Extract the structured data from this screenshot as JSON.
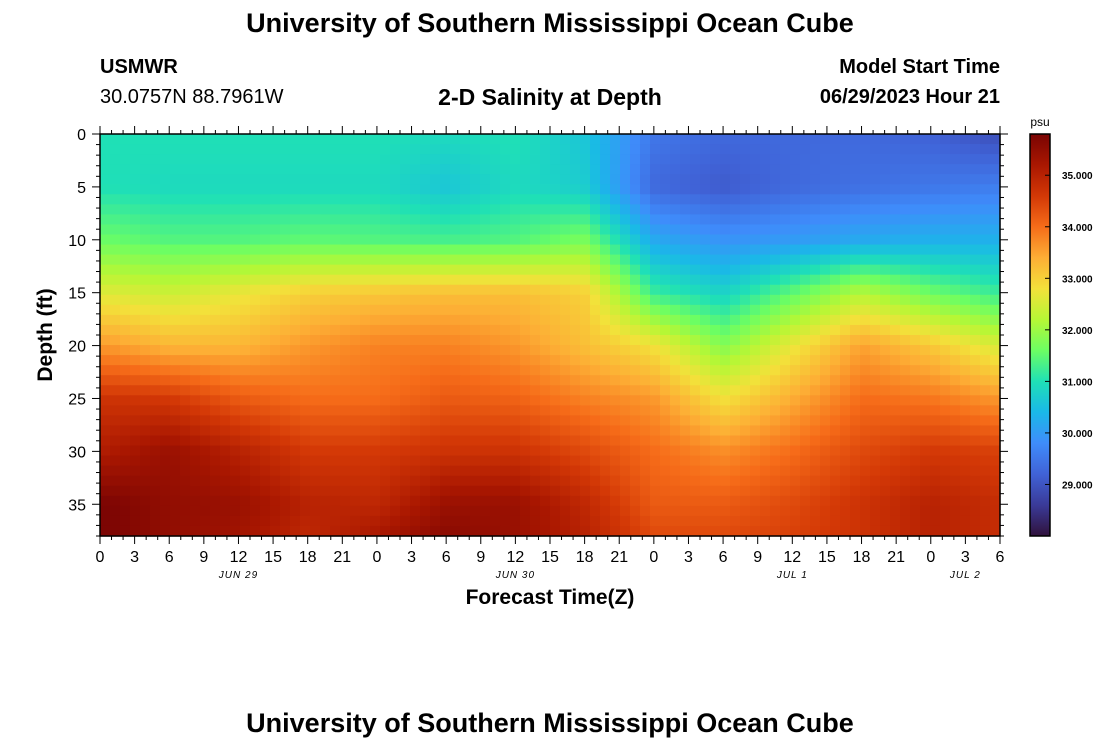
{
  "page": {
    "title": "University of Southern Mississippi Ocean Cube",
    "footer_title": "University of Southern Mississippi Ocean Cube",
    "station_id": "USMWR",
    "station_coords": "30.0757N  88.7961W",
    "plot_title": "2-D Salinity at Depth",
    "model_start_label": "Model Start Time",
    "model_start_value": "06/29/2023 Hour 21"
  },
  "chart_data": {
    "type": "heatmap",
    "title": "2-D Salinity at Depth",
    "xlabel": "Forecast Time(Z)",
    "ylabel": "Depth (ft)",
    "x_unit": "hours from 2023-06-29 00Z",
    "xlim": [
      0,
      78
    ],
    "ylim": [
      0,
      38
    ],
    "y_inverted": true,
    "x_ticks": [
      0,
      3,
      6,
      9,
      12,
      15,
      18,
      21,
      24,
      27,
      30,
      33,
      36,
      39,
      42,
      45,
      48,
      51,
      54,
      57,
      60,
      63,
      66,
      69,
      72,
      75,
      78
    ],
    "x_tick_labels": [
      "0",
      "3",
      "6",
      "9",
      "12",
      "15",
      "18",
      "21",
      "0",
      "3",
      "6",
      "9",
      "12",
      "15",
      "18",
      "21",
      "0",
      "3",
      "6",
      "9",
      "12",
      "15",
      "18",
      "21",
      "0",
      "3",
      "6"
    ],
    "date_labels": [
      {
        "x": 12,
        "text": "JUN 29"
      },
      {
        "x": 36,
        "text": "JUN 30"
      },
      {
        "x": 60,
        "text": "JUL 1"
      },
      {
        "x": 75,
        "text": "JUL 2"
      }
    ],
    "y_ticks": [
      0,
      5,
      10,
      15,
      20,
      25,
      30,
      35
    ],
    "colorbar": {
      "unit": "psu",
      "range": [
        28.0,
        35.8
      ],
      "tick_values": [
        29,
        30,
        31,
        32,
        33,
        34,
        35
      ],
      "tick_labels": [
        "29.000",
        "30.000",
        "31.000",
        "32.000",
        "33.000",
        "34.000",
        "35.000"
      ],
      "colors": [
        "#30123b",
        "#3a3a98",
        "#4062d6",
        "#3f8cfb",
        "#1ab8e8",
        "#1fe0b6",
        "#6cfe63",
        "#b6f735",
        "#f3e13a",
        "#fdae35",
        "#f66c19",
        "#d33806",
        "#a91701",
        "#7a0403"
      ]
    },
    "depths_ft": [
      0,
      5,
      10,
      15,
      20,
      25,
      30,
      35,
      38
    ],
    "times_h": [
      0,
      6,
      12,
      18,
      24,
      30,
      36,
      42,
      48,
      54,
      60,
      66,
      72,
      78
    ],
    "salinity_psu": [
      [
        31.0,
        31.0,
        31.0,
        31.0,
        31.0,
        30.9,
        31.0,
        30.6,
        29.5,
        29.3,
        29.3,
        29.3,
        29.2,
        28.9
      ],
      [
        31.0,
        30.9,
        30.9,
        30.9,
        30.9,
        30.6,
        30.9,
        30.7,
        29.3,
        29.1,
        29.3,
        29.4,
        29.5,
        29.6
      ],
      [
        31.6,
        31.4,
        31.4,
        31.5,
        31.4,
        31.3,
        31.4,
        31.7,
        30.2,
        29.9,
        30.0,
        30.2,
        30.3,
        30.3
      ],
      [
        32.6,
        32.4,
        32.7,
        33.0,
        33.1,
        33.2,
        33.2,
        33.0,
        31.2,
        30.8,
        31.5,
        32.2,
        31.6,
        31.2
      ],
      [
        33.6,
        33.3,
        33.3,
        33.6,
        33.8,
        33.8,
        33.6,
        33.2,
        32.8,
        31.8,
        32.7,
        33.5,
        33.1,
        32.5
      ],
      [
        34.7,
        34.6,
        34.2,
        34.0,
        34.0,
        34.2,
        34.1,
        33.8,
        33.6,
        32.8,
        33.4,
        34.0,
        33.9,
        33.6
      ],
      [
        35.1,
        35.4,
        35.0,
        34.6,
        34.6,
        34.7,
        34.7,
        34.4,
        34.0,
        33.7,
        34.0,
        34.4,
        34.6,
        34.5
      ],
      [
        35.8,
        35.5,
        35.4,
        35.0,
        34.9,
        35.4,
        35.4,
        34.9,
        34.2,
        34.2,
        34.4,
        34.7,
        35.0,
        34.8
      ],
      [
        35.8,
        35.5,
        35.3,
        34.9,
        35.2,
        35.6,
        35.4,
        35.0,
        34.4,
        34.4,
        34.5,
        34.7,
        35.0,
        34.8
      ]
    ]
  }
}
